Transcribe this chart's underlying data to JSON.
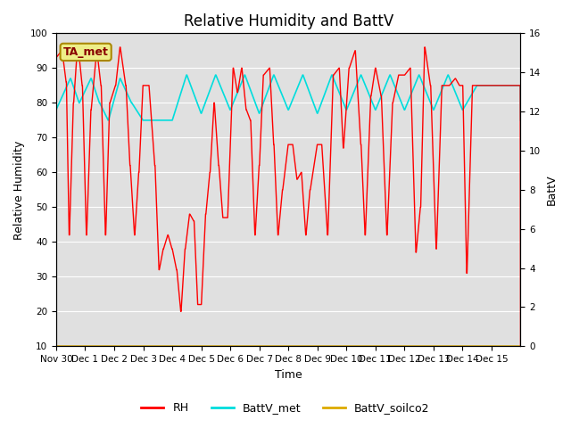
{
  "title": "Relative Humidity and BattV",
  "ylabel_left": "Relative Humidity",
  "ylabel_right": "BattV",
  "xlabel": "Time",
  "ylim_left": [
    10,
    100
  ],
  "ylim_right": [
    0,
    16
  ],
  "yticks_left": [
    10,
    20,
    30,
    40,
    50,
    60,
    70,
    80,
    90,
    100
  ],
  "yticks_right": [
    0,
    2,
    4,
    6,
    8,
    10,
    12,
    14,
    16
  ],
  "xtick_positions": [
    0,
    1,
    2,
    3,
    4,
    5,
    6,
    7,
    8,
    9,
    10,
    11,
    12,
    13,
    14,
    15
  ],
  "xtick_labels": [
    "Nov 30",
    "Dec 1",
    "Dec 2",
    "Dec 3",
    "Dec 4",
    "Dec 5",
    "Dec 6",
    "Dec 7",
    "Dec 8",
    "Dec 9",
    "Dec 10",
    "Dec 11",
    "Dec 12",
    "Dec 13",
    "Dec 14",
    "Dec 15"
  ],
  "annotation_text": "TA_met",
  "annotation_bg_color": "#eeee88",
  "annotation_edge_color": "#aa8800",
  "annotation_text_color": "#880000",
  "rh_color": "#ff0000",
  "battv_met_color": "#00dddd",
  "battv_soilco2_color": "#ddaa00",
  "background_color": "#ffffff",
  "plot_bg_color": "#e0e0e0",
  "grid_color": "#ffffff",
  "xlim": [
    0,
    16
  ],
  "title_fontsize": 12,
  "label_fontsize": 9,
  "tick_fontsize": 7.5,
  "legend_fontsize": 9,
  "rh_linewidth": 1.0,
  "battv_met_linewidth": 1.2,
  "battv_soilco2_linewidth": 1.5
}
